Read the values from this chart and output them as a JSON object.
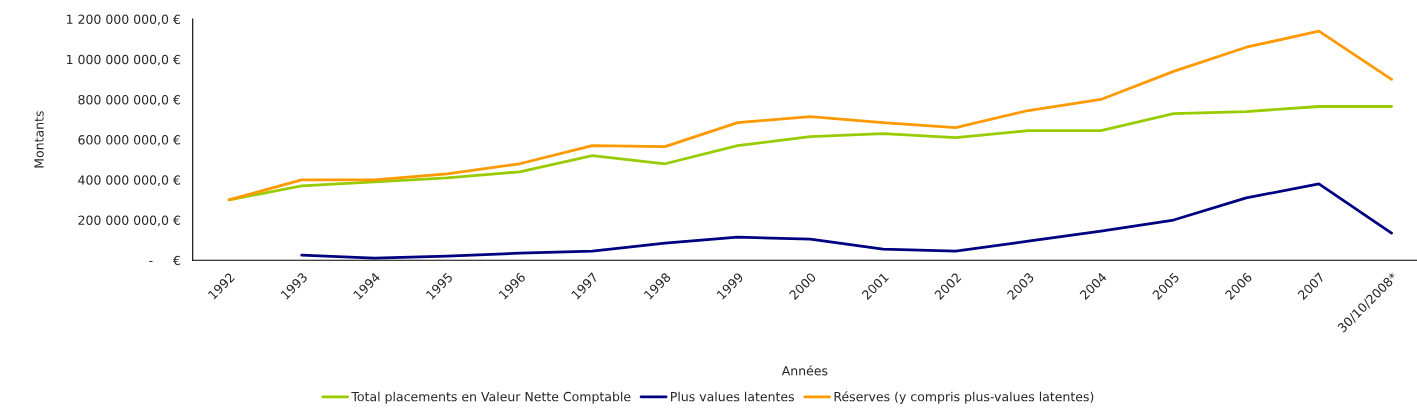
{
  "chart_data": {
    "type": "line",
    "xlabel": "Années",
    "ylabel": "Montants",
    "categories": [
      "1992",
      "1993",
      "1994",
      "1995",
      "1996",
      "1997",
      "1998",
      "1999",
      "2000",
      "2001",
      "2002",
      "2003",
      "2004",
      "2005",
      "2006",
      "2007",
      "30/10/2008*"
    ],
    "series": [
      {
        "name": "Total placements en Valeur Nette Comptable",
        "color": "#99cc00",
        "values": [
          300000000,
          370000000,
          390000000,
          410000000,
          440000000,
          520000000,
          480000000,
          570000000,
          615000000,
          630000000,
          610000000,
          645000000,
          645000000,
          730000000,
          740000000,
          765000000,
          765000000
        ]
      },
      {
        "name": "Plus values latentes",
        "color": "#000080",
        "values": [
          null,
          25000000,
          10000000,
          20000000,
          35000000,
          45000000,
          85000000,
          115000000,
          105000000,
          55000000,
          45000000,
          95000000,
          145000000,
          200000000,
          310000000,
          380000000,
          135000000
        ]
      },
      {
        "name": "Réserves (y compris plus-values latentes)",
        "color": "#ff9900",
        "values": [
          300000000,
          400000000,
          400000000,
          430000000,
          480000000,
          570000000,
          565000000,
          685000000,
          715000000,
          685000000,
          660000000,
          745000000,
          800000000,
          940000000,
          1060000000,
          1140000000,
          900000000
        ]
      }
    ],
    "ylim": [
      0,
      1200000000
    ],
    "yticks": [
      {
        "value": 0,
        "label": "-     €"
      },
      {
        "value": 200000000,
        "label": "200 000 000,0 €"
      },
      {
        "value": 400000000,
        "label": "400 000 000,0 €"
      },
      {
        "value": 600000000,
        "label": "600 000 000,0 €"
      },
      {
        "value": 800000000,
        "label": "800 000 000,0 €"
      },
      {
        "value": 1000000000,
        "label": "1 000 000 000,0 €"
      },
      {
        "value": 1200000000,
        "label": "1 200 000 000,0 €"
      }
    ],
    "grid": false,
    "legend": "bottom",
    "marker": "none",
    "line_style": "solid"
  }
}
